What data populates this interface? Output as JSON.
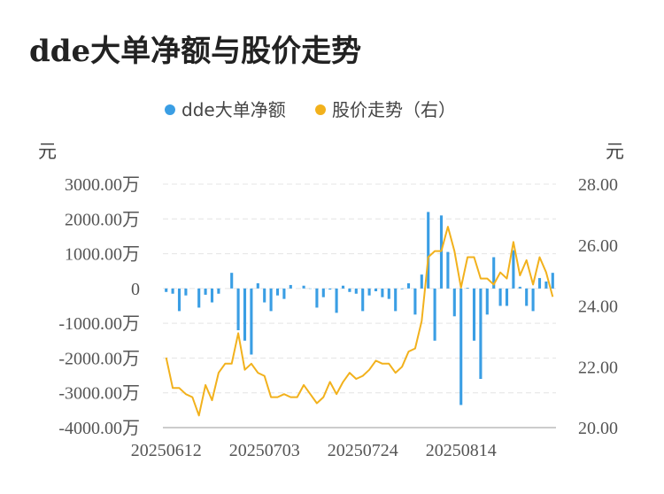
{
  "title": "dde大单净额与股价走势",
  "chart_data": {
    "type": "bar+line",
    "legend": [
      "dde大单净额",
      "股价走势（右）"
    ],
    "left_unit": "元",
    "right_unit": "元",
    "left_ticks": [
      "3000.00万",
      "2000.00万",
      "1000.00万",
      "0",
      "-1000.00万",
      "-2000.00万",
      "-3000.00万",
      "-4000.00万"
    ],
    "left_tick_values": [
      3000,
      2000,
      1000,
      0,
      -1000,
      -2000,
      -3000,
      -4000
    ],
    "right_ticks": [
      "28.00",
      "26.00",
      "24.00",
      "22.00",
      "20.00"
    ],
    "right_tick_values": [
      28,
      26,
      24,
      22,
      20
    ],
    "ylim_left": [
      -4000,
      3000
    ],
    "ylim_right": [
      20,
      28
    ],
    "x_tick_labels": [
      {
        "label": "20250612",
        "index": 0
      },
      {
        "label": "20250703",
        "index": 15
      },
      {
        "label": "20250724",
        "index": 30
      },
      {
        "label": "20250814",
        "index": 45
      }
    ],
    "colors": {
      "bar": "#3a9ee4",
      "line": "#f2b11c",
      "grid": "#e4e4e4"
    },
    "series": [
      {
        "name": "dde大单净额",
        "unit": "万",
        "values": [
          -100,
          -150,
          -650,
          -200,
          0,
          -550,
          -180,
          -400,
          -150,
          0,
          450,
          -1200,
          -1500,
          -1900,
          150,
          -400,
          -650,
          -200,
          -300,
          100,
          0,
          80,
          -10,
          -550,
          -250,
          -30,
          -700,
          80,
          -100,
          -150,
          -650,
          -200,
          -80,
          -250,
          -300,
          -650,
          -20,
          150,
          -750,
          400,
          2200,
          -1500,
          2100,
          1050,
          -800,
          -3350,
          20,
          -1500,
          -2600,
          -750,
          900,
          -500,
          -500,
          1100,
          50,
          -500,
          -650,
          300,
          200,
          450
        ]
      },
      {
        "name": "股价走势（右）",
        "unit": "元",
        "values": [
          22.3,
          21.3,
          21.3,
          21.1,
          21.0,
          20.4,
          21.4,
          20.9,
          21.8,
          22.1,
          22.1,
          23.1,
          21.9,
          22.1,
          21.8,
          21.7,
          21.0,
          21.0,
          21.1,
          21.0,
          21.0,
          21.4,
          21.1,
          20.8,
          21.0,
          21.5,
          21.1,
          21.5,
          21.8,
          21.6,
          21.7,
          21.9,
          22.2,
          22.1,
          22.1,
          21.8,
          22.0,
          22.5,
          22.6,
          23.5,
          25.6,
          25.8,
          25.8,
          26.6,
          25.8,
          24.6,
          25.6,
          25.6,
          24.9,
          24.9,
          24.7,
          25.1,
          24.9,
          26.1,
          25.0,
          25.5,
          24.7,
          25.6,
          25.1,
          24.3
        ]
      }
    ]
  }
}
